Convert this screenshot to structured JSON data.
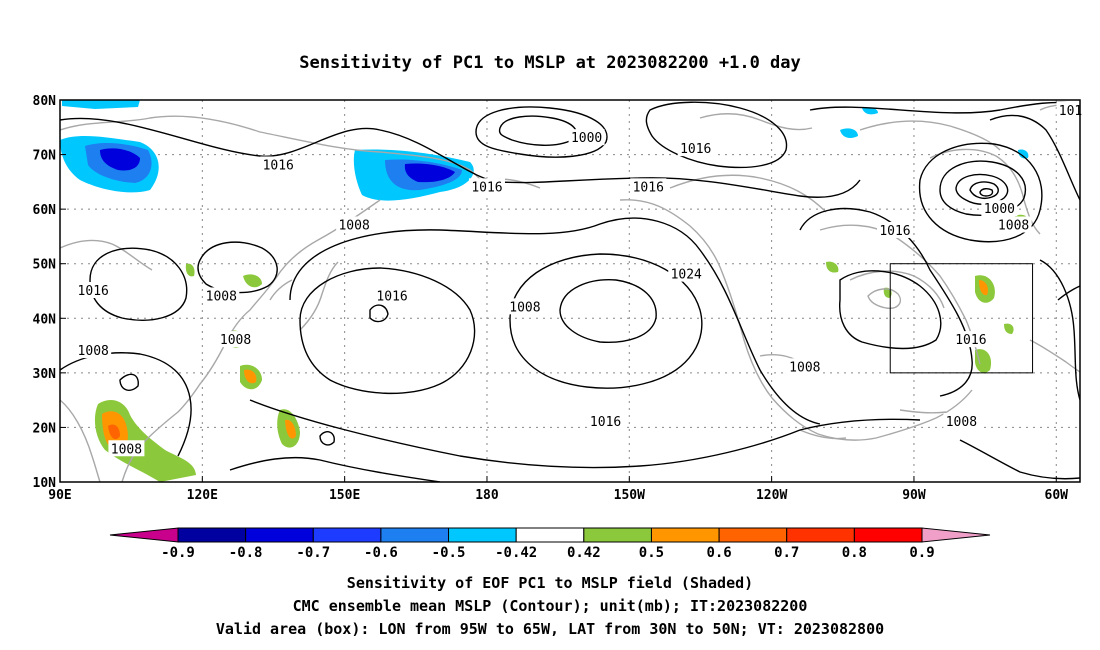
{
  "title": "Sensitivity of PC1 to MSLP at 2023082200 +1.0 day",
  "map": {
    "lon_range": [
      90,
      305
    ],
    "lat_range": [
      10,
      80
    ],
    "lon_ticks": [
      {
        "lon": 90,
        "label": "90E"
      },
      {
        "lon": 120,
        "label": "120E"
      },
      {
        "lon": 150,
        "label": "150E"
      },
      {
        "lon": 180,
        "label": "180"
      },
      {
        "lon": 210,
        "label": "150W"
      },
      {
        "lon": 240,
        "label": "120W"
      },
      {
        "lon": 270,
        "label": "90W"
      },
      {
        "lon": 300,
        "label": "60W"
      }
    ],
    "lat_ticks": [
      {
        "lat": 10,
        "label": "10N"
      },
      {
        "lat": 20,
        "label": "20N"
      },
      {
        "lat": 30,
        "label": "30N"
      },
      {
        "lat": 40,
        "label": "40N"
      },
      {
        "lat": 50,
        "label": "50N"
      },
      {
        "lat": 60,
        "label": "60N"
      },
      {
        "lat": 70,
        "label": "70N"
      },
      {
        "lat": 80,
        "label": "80N"
      }
    ],
    "grid": "dotted",
    "valid_box": {
      "lon_min": 265,
      "lon_max": 295,
      "lat_min": 30,
      "lat_max": 50
    },
    "contour_labels": [
      {
        "text": "1000",
        "lon": 201,
        "lat": 73
      },
      {
        "text": "1016",
        "lon": 224,
        "lat": 71
      },
      {
        "text": "1016",
        "lon": 136,
        "lat": 68
      },
      {
        "text": "1016",
        "lon": 180,
        "lat": 64
      },
      {
        "text": "1016",
        "lon": 214,
        "lat": 64
      },
      {
        "text": "1016",
        "lon": 266,
        "lat": 56
      },
      {
        "text": "1000",
        "lon": 288,
        "lat": 60
      },
      {
        "text": "1008",
        "lon": 291,
        "lat": 57
      },
      {
        "text": "101",
        "lon": 303,
        "lat": 78
      },
      {
        "text": "1008",
        "lon": 152,
        "lat": 57
      },
      {
        "text": "1016",
        "lon": 97,
        "lat": 45
      },
      {
        "text": "1008",
        "lon": 124,
        "lat": 44
      },
      {
        "text": "1016",
        "lon": 160,
        "lat": 44
      },
      {
        "text": "1024",
        "lon": 222,
        "lat": 48
      },
      {
        "text": "1008",
        "lon": 188,
        "lat": 42
      },
      {
        "text": "1008",
        "lon": 97,
        "lat": 34
      },
      {
        "text": "1008",
        "lon": 127,
        "lat": 36
      },
      {
        "text": "1008",
        "lon": 247,
        "lat": 31
      },
      {
        "text": "1016",
        "lon": 282,
        "lat": 36
      },
      {
        "text": "1016",
        "lon": 205,
        "lat": 21
      },
      {
        "text": "1008",
        "lon": 104,
        "lat": 16
      },
      {
        "text": "1008",
        "lon": 280,
        "lat": 21
      }
    ]
  },
  "colorbar": {
    "labels": [
      "-0.9",
      "-0.8",
      "-0.7",
      "-0.6",
      "-0.5",
      "-0.42",
      "0.42",
      "0.5",
      "0.6",
      "0.7",
      "0.8",
      "0.9"
    ],
    "colors": [
      "#c8008c",
      "#0000a0",
      "#0000dc",
      "#1e3cff",
      "#1e7ff0",
      "#00c8ff",
      "#ffffff",
      "#8cc83c",
      "#ff9600",
      "#ff6400",
      "#ff3200",
      "#ff0000",
      "#f0a0c8"
    ]
  },
  "captions": {
    "line1": "Sensitivity of EOF PC1 to MSLP field (Shaded)",
    "line2": "CMC ensemble mean MSLP (Contour); unit(mb); IT:2023082200",
    "line3": "Valid area (box): LON from 95W to 65W, LAT from 30N to 50N; VT: 2023082800"
  }
}
